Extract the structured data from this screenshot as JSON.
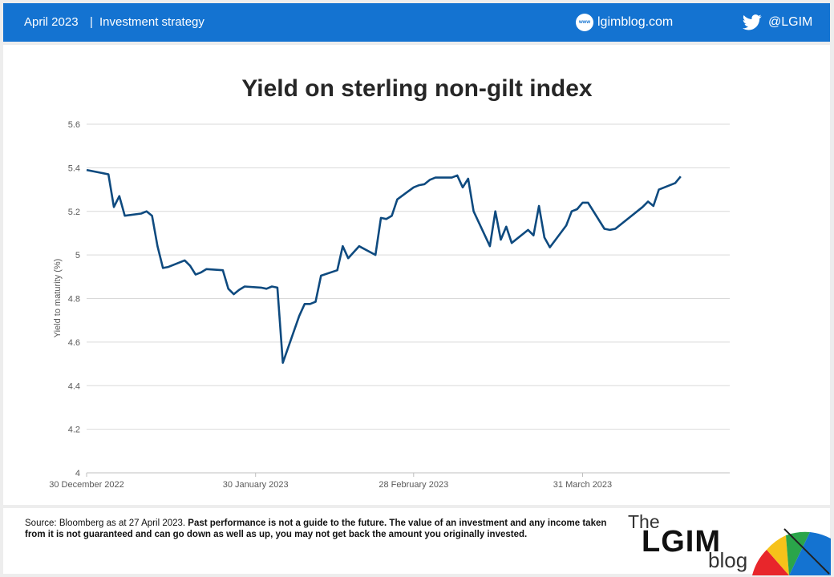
{
  "header": {
    "date": "April 2023",
    "separator": "|",
    "section": "Investment strategy",
    "www_icon_text": "www",
    "site": "lgimblog.com",
    "handle": "@LGIM",
    "icons": [
      "www-icon",
      "twitter-icon"
    ],
    "color": "#1473d1"
  },
  "chart_data": {
    "type": "line",
    "title": "Yield on sterling non-gilt index",
    "ylabel": "Yield to maturity (%)",
    "xlabel": "",
    "ylim": [
      4,
      5.6
    ],
    "yticks": [
      "4",
      "4.2",
      "4.4",
      "4.6",
      "4.8",
      "5",
      "5.2",
      "5.4",
      "5.6"
    ],
    "xticks": [
      {
        "date": "2022-12-30",
        "label": "30 December 2022"
      },
      {
        "date": "2023-01-30",
        "label": "30 January 2023"
      },
      {
        "date": "2023-02-28",
        "label": "28 February 2023"
      },
      {
        "date": "2023-03-31",
        "label": "31 March 2023"
      }
    ],
    "x_range": [
      "2022-12-30",
      "2023-04-27"
    ],
    "grid": "horizontal",
    "series": [
      {
        "color": "#0e4a7f",
        "points": [
          [
            "2022-12-30",
            5.39
          ],
          [
            "2023-01-03",
            5.37
          ],
          [
            "2023-01-04",
            5.22
          ],
          [
            "2023-01-05",
            5.27
          ],
          [
            "2023-01-06",
            5.18
          ],
          [
            "2023-01-09",
            5.19
          ],
          [
            "2023-01-10",
            5.2
          ],
          [
            "2023-01-11",
            5.18
          ],
          [
            "2023-01-12",
            5.04
          ],
          [
            "2023-01-13",
            4.94
          ],
          [
            "2023-01-14",
            4.945
          ],
          [
            "2023-01-17",
            4.975
          ],
          [
            "2023-01-18",
            4.95
          ],
          [
            "2023-01-19",
            4.91
          ],
          [
            "2023-01-20",
            4.92
          ],
          [
            "2023-01-21",
            4.935
          ],
          [
            "2023-01-24",
            4.93
          ],
          [
            "2023-01-25",
            4.845
          ],
          [
            "2023-01-26",
            4.82
          ],
          [
            "2023-01-27",
            4.84
          ],
          [
            "2023-01-28",
            4.855
          ],
          [
            "2023-01-31",
            4.85
          ],
          [
            "2023-02-01",
            4.845
          ],
          [
            "2023-02-02",
            4.855
          ],
          [
            "2023-02-03",
            4.85
          ],
          [
            "2023-02-04",
            4.505
          ],
          [
            "2023-02-07",
            4.72
          ],
          [
            "2023-02-08",
            4.775
          ],
          [
            "2023-02-09",
            4.775
          ],
          [
            "2023-02-10",
            4.785
          ],
          [
            "2023-02-11",
            4.905
          ],
          [
            "2023-02-14",
            4.93
          ],
          [
            "2023-02-15",
            5.04
          ],
          [
            "2023-02-16",
            4.985
          ],
          [
            "2023-02-18",
            5.04
          ],
          [
            "2023-02-21",
            5.0
          ],
          [
            "2023-02-22",
            5.17
          ],
          [
            "2023-02-23",
            5.165
          ],
          [
            "2023-02-24",
            5.18
          ],
          [
            "2023-02-25",
            5.255
          ],
          [
            "2023-02-28",
            5.31
          ],
          [
            "2023-03-01",
            5.32
          ],
          [
            "2023-03-02",
            5.325
          ],
          [
            "2023-03-03",
            5.345
          ],
          [
            "2023-03-04",
            5.355
          ],
          [
            "2023-03-07",
            5.355
          ],
          [
            "2023-03-08",
            5.365
          ],
          [
            "2023-03-09",
            5.31
          ],
          [
            "2023-03-10",
            5.35
          ],
          [
            "2023-03-11",
            5.2
          ],
          [
            "2023-03-14",
            5.04
          ],
          [
            "2023-03-15",
            5.2
          ],
          [
            "2023-03-16",
            5.07
          ],
          [
            "2023-03-17",
            5.13
          ],
          [
            "2023-03-18",
            5.055
          ],
          [
            "2023-03-21",
            5.115
          ],
          [
            "2023-03-22",
            5.09
          ],
          [
            "2023-03-23",
            5.225
          ],
          [
            "2023-03-24",
            5.08
          ],
          [
            "2023-03-25",
            5.035
          ],
          [
            "2023-03-28",
            5.135
          ],
          [
            "2023-03-29",
            5.2
          ],
          [
            "2023-03-30",
            5.21
          ],
          [
            "2023-03-31",
            5.24
          ],
          [
            "2023-04-01",
            5.24
          ],
          [
            "2023-04-04",
            5.12
          ],
          [
            "2023-04-05",
            5.115
          ],
          [
            "2023-04-06",
            5.12
          ],
          [
            "2023-04-11",
            5.22
          ],
          [
            "2023-04-12",
            5.245
          ],
          [
            "2023-04-13",
            5.225
          ],
          [
            "2023-04-14",
            5.3
          ],
          [
            "2023-04-17",
            5.33
          ],
          [
            "2023-04-18",
            5.36
          ]
        ]
      }
    ]
  },
  "footer": {
    "source_plain": "Source: Bloomberg as at 27 April 2023. ",
    "source_bold": "Past performance is not a guide to the future. The value of an investment and any income taken from it is not guaranteed and can go down as well as up, you may not get back the amount you originally invested.",
    "logo_the": "The",
    "logo_lgim": "LGIM",
    "logo_blog": "blog",
    "logo_icon": "umbrella-icon"
  }
}
